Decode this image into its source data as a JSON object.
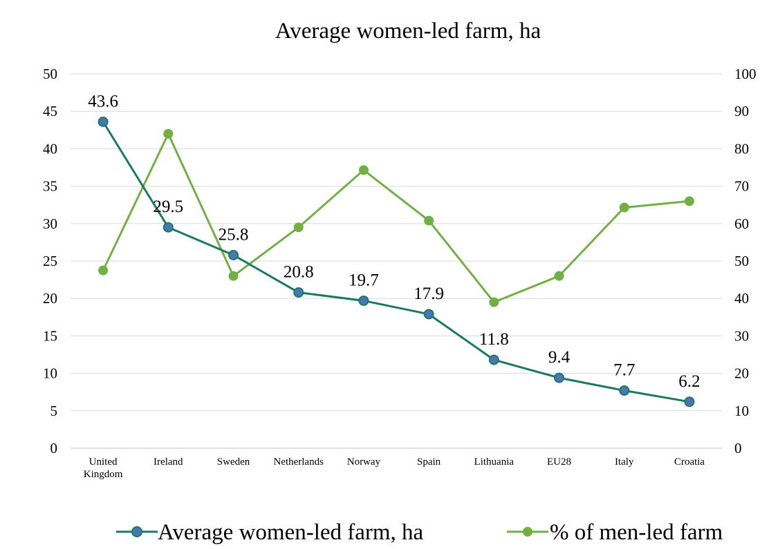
{
  "chart_data": {
    "type": "line",
    "title": "Average women-led farm, ha",
    "categories": [
      "United Kingdom",
      "Ireland",
      "Sweden",
      "Netherlands",
      "Norway",
      "Spain",
      "Lithuania",
      "EU28",
      "Italy",
      "Croatia"
    ],
    "category_lines": [
      [
        "United",
        "Kingdom"
      ],
      [
        "Ireland"
      ],
      [
        "Sweden"
      ],
      [
        "Netherlands"
      ],
      [
        "Norway"
      ],
      [
        "Spain"
      ],
      [
        "Lithuania"
      ],
      [
        "EU28"
      ],
      [
        "Italy"
      ],
      [
        "Croatia"
      ]
    ],
    "y_left": {
      "min": 0,
      "max": 50,
      "step": 5,
      "ticks": [
        "0",
        "5",
        "10",
        "15",
        "20",
        "25",
        "30",
        "35",
        "40",
        "45",
        "50"
      ]
    },
    "y_right": {
      "min": 0,
      "max": 100,
      "step": 10,
      "ticks": [
        "0",
        "10",
        "20",
        "30",
        "40",
        "50",
        "60",
        "70",
        "80",
        "90",
        "100"
      ]
    },
    "series": [
      {
        "name": "Average women-led farm, ha",
        "axis": "left",
        "line_color": "#1a7a5e",
        "marker_fill": "#4a76b8",
        "values": [
          43.6,
          29.5,
          25.8,
          20.8,
          19.7,
          17.9,
          11.8,
          9.4,
          7.7,
          6.2
        ],
        "data_labels": [
          "43.6",
          "29.5",
          "25.8",
          "20.8",
          "19.7",
          "17.9",
          "11.8",
          "9.4",
          "7.7",
          "6.2"
        ]
      },
      {
        "name": "% of men-led farm",
        "axis": "right",
        "line_color": "#72b043",
        "marker_fill": "#72b043",
        "values": [
          47.5,
          84,
          46,
          59,
          74.3,
          60.8,
          39,
          46,
          64.3,
          66
        ]
      }
    ],
    "grid": true,
    "legend_position": "bottom"
  }
}
